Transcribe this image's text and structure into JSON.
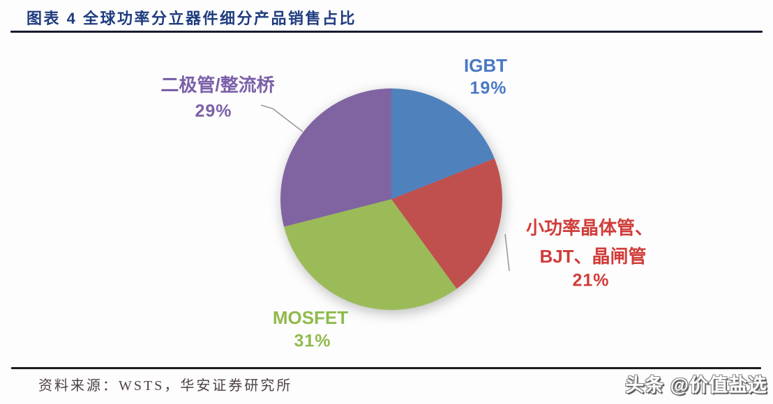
{
  "header": {
    "title": "图表 4 全球功率分立器件细分产品销售占比"
  },
  "chart_data": {
    "type": "pie",
    "title": "全球功率分立器件细分产品销售占比",
    "unit": "percent",
    "start_angle_deg": 0,
    "direction": "clockwise",
    "legend_position": "data-labels",
    "slices": [
      {
        "key": "igbt",
        "label": "IGBT",
        "lines": [
          "IGBT"
        ],
        "value": 19,
        "pct_label": "19%",
        "color": "#4f81bd",
        "label_color": "#4a79c4"
      },
      {
        "key": "bjt",
        "label": "小功率晶体管、BJT、晶闸管",
        "lines": [
          "小功率晶体管、",
          "BJT、晶闸管"
        ],
        "value": 21,
        "pct_label": "21%",
        "color": "#c0504d",
        "label_color": "#d03c39"
      },
      {
        "key": "mosfet",
        "label": "MOSFET",
        "lines": [
          "MOSFET"
        ],
        "value": 31,
        "pct_label": "31%",
        "color": "#9bbb59",
        "label_color": "#8fba4d"
      },
      {
        "key": "diode",
        "label": "二极管/整流桥",
        "lines": [
          "二极管/整流桥"
        ],
        "value": 29,
        "pct_label": "29%",
        "color": "#8064a2",
        "label_color": "#7b60a8"
      }
    ]
  },
  "footer": {
    "source": "资料来源：WSTS，华安证券研究所",
    "watermark": "头条 @价值盐选"
  }
}
